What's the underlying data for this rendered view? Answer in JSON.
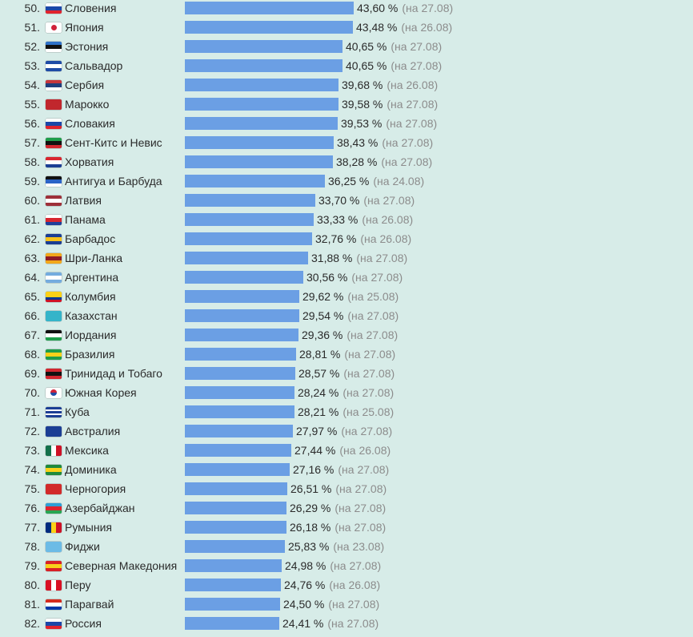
{
  "chart_data": {
    "type": "bar",
    "orientation": "horizontal",
    "bar_color": "#6b9fe4",
    "rows": [
      {
        "rank": "50.",
        "country": "Словения",
        "value_label": "43,60 %",
        "value": 43.6,
        "date_label": "(на 27.08)",
        "flag": [
          "#ffffff",
          "#1b47a8",
          "#e0232d"
        ]
      },
      {
        "rank": "51.",
        "country": "Япония",
        "value_label": "43,48 %",
        "value": 43.48,
        "date_label": "(на 26.08)",
        "flag_icon": "japan-flag-icon"
      },
      {
        "rank": "52.",
        "country": "Эстония",
        "value_label": "40,65 %",
        "value": 40.65,
        "date_label": "(на 27.08)",
        "flag": [
          "#2f72c9",
          "#111111",
          "#ffffff"
        ]
      },
      {
        "rank": "53.",
        "country": "Сальвадор",
        "value_label": "40,65 %",
        "value": 40.65,
        "date_label": "(на 27.08)",
        "flag": [
          "#1e4ba6",
          "#ffffff",
          "#1e4ba6"
        ]
      },
      {
        "rank": "54.",
        "country": "Сербия",
        "value_label": "39,68 %",
        "value": 39.68,
        "date_label": "(на 26.08)",
        "flag": [
          "#c7363c",
          "#1f3f7d",
          "#ffffff"
        ]
      },
      {
        "rank": "55.",
        "country": "Марокко",
        "value_label": "39,58 %",
        "value": 39.58,
        "date_label": "(на 27.08)",
        "flag": [
          "#c1272d"
        ]
      },
      {
        "rank": "56.",
        "country": "Словакия",
        "value_label": "39,53 %",
        "value": 39.53,
        "date_label": "(на 27.08)",
        "flag": [
          "#ffffff",
          "#1b47a8",
          "#e0232d"
        ]
      },
      {
        "rank": "57.",
        "country": "Сент-Китс и Невис",
        "value_label": "38,43 %",
        "value": 38.43,
        "date_label": "(на 27.08)",
        "flag": [
          "#1e9d4a",
          "#111111",
          "#d2262f"
        ]
      },
      {
        "rank": "58.",
        "country": "Хорватия",
        "value_label": "38,28 %",
        "value": 38.28,
        "date_label": "(на 27.08)",
        "flag": [
          "#d9262f",
          "#ffffff",
          "#1b3e94"
        ]
      },
      {
        "rank": "59.",
        "country": "Антигуа и Барбуда",
        "value_label": "36,25 %",
        "value": 36.25,
        "date_label": "(на 24.08)",
        "flag": [
          "#111111",
          "#2a63c7",
          "#ffffff"
        ]
      },
      {
        "rank": "60.",
        "country": "Латвия",
        "value_label": "33,70 %",
        "value": 33.7,
        "date_label": "(на 27.08)",
        "flag": [
          "#9e3039",
          "#ffffff",
          "#9e3039"
        ]
      },
      {
        "rank": "61.",
        "country": "Панама",
        "value_label": "33,33 %",
        "value": 33.33,
        "date_label": "(на 26.08)",
        "flag": [
          "#ffffff",
          "#d7262f",
          "#1f3f9a"
        ]
      },
      {
        "rank": "62.",
        "country": "Барбадос",
        "value_label": "32,76 %",
        "value": 32.76,
        "date_label": "(на 26.08)",
        "flag": [
          "#1b3e94",
          "#f7c11a",
          "#1b3e94"
        ]
      },
      {
        "rank": "63.",
        "country": "Шри-Ланка",
        "value_label": "31,88 %",
        "value": 31.88,
        "date_label": "(на 27.08)",
        "flag": [
          "#f2a81b",
          "#8e1b26",
          "#f2a81b"
        ]
      },
      {
        "rank": "64.",
        "country": "Аргентина",
        "value_label": "30,56 %",
        "value": 30.56,
        "date_label": "(на 27.08)",
        "flag": [
          "#74acdf",
          "#ffffff",
          "#74acdf"
        ]
      },
      {
        "rank": "65.",
        "country": "Колумбия",
        "value_label": "29,62 %",
        "value": 29.62,
        "date_label": "(на 25.08)",
        "flag": [
          "#fcd116",
          "#fcd116",
          "#003893",
          "#ce1126"
        ]
      },
      {
        "rank": "66.",
        "country": "Казахстан",
        "value_label": "29,54 %",
        "value": 29.54,
        "date_label": "(на 27.08)",
        "flag": [
          "#34b4c9"
        ]
      },
      {
        "rank": "67.",
        "country": "Иордания",
        "value_label": "29,36 %",
        "value": 29.36,
        "date_label": "(на 27.08)",
        "flag": [
          "#111111",
          "#ffffff",
          "#1e9d4a"
        ]
      },
      {
        "rank": "68.",
        "country": "Бразилия",
        "value_label": "28,81 %",
        "value": 28.81,
        "date_label": "(на 27.08)",
        "flag": [
          "#1e9d4a",
          "#f7d11a",
          "#1e9d4a"
        ]
      },
      {
        "rank": "69.",
        "country": "Тринидад и Тобаго",
        "value_label": "28,57 %",
        "value": 28.57,
        "date_label": "(на 27.08)",
        "flag": [
          "#d2262f",
          "#111111",
          "#d2262f"
        ]
      },
      {
        "rank": "70.",
        "country": "Южная Корея",
        "value_label": "28,24 %",
        "value": 28.24,
        "date_label": "(на 27.08)",
        "flag_icon": "south-korea-flag-icon"
      },
      {
        "rank": "71.",
        "country": "Куба",
        "value_label": "28,21 %",
        "value": 28.21,
        "date_label": "(на 25.08)",
        "flag": [
          "#1b3e94",
          "#ffffff",
          "#1b3e94",
          "#ffffff",
          "#1b3e94"
        ]
      },
      {
        "rank": "72.",
        "country": "Австралия",
        "value_label": "27,97 %",
        "value": 27.97,
        "date_label": "(на 27.08)",
        "flag": [
          "#1b3e94"
        ]
      },
      {
        "rank": "73.",
        "country": "Мексика",
        "value_label": "27,44 %",
        "value": 27.44,
        "date_label": "(на 26.08)",
        "flag_icon": "mexico-flag-icon"
      },
      {
        "rank": "74.",
        "country": "Доминика",
        "value_label": "27,16 %",
        "value": 27.16,
        "date_label": "(на 27.08)",
        "flag": [
          "#1e8a3e",
          "#f7d11a",
          "#1e8a3e"
        ]
      },
      {
        "rank": "75.",
        "country": "Черногория",
        "value_label": "26,51 %",
        "value": 26.51,
        "date_label": "(на 27.08)",
        "flag": [
          "#d22a2a"
        ]
      },
      {
        "rank": "76.",
        "country": "Азербайджан",
        "value_label": "26,29 %",
        "value": 26.29,
        "date_label": "(на 27.08)",
        "flag": [
          "#2e9fd6",
          "#e0232d",
          "#27a552"
        ]
      },
      {
        "rank": "77.",
        "country": "Румыния",
        "value_label": "26,18 %",
        "value": 26.18,
        "date_label": "(на 27.08)",
        "flag_icon": "romania-flag-icon"
      },
      {
        "rank": "78.",
        "country": "Фиджи",
        "value_label": "25,83 %",
        "value": 25.83,
        "date_label": "(на 23.08)",
        "flag": [
          "#6cbbe6"
        ]
      },
      {
        "rank": "79.",
        "country": "Северная Македония",
        "value_label": "24,98 %",
        "value": 24.98,
        "date_label": "(на 27.08)",
        "flag": [
          "#d82126",
          "#f8d11b",
          "#d82126"
        ]
      },
      {
        "rank": "80.",
        "country": "Перу",
        "value_label": "24,76 %",
        "value": 24.76,
        "date_label": "(на 26.08)",
        "flag_icon": "peru-flag-icon"
      },
      {
        "rank": "81.",
        "country": "Парагвай",
        "value_label": "24,50 %",
        "value": 24.5,
        "date_label": "(на 27.08)",
        "flag": [
          "#d52b1e",
          "#ffffff",
          "#0038a8"
        ]
      },
      {
        "rank": "82.",
        "country": "Россия",
        "value_label": "24,41 %",
        "value": 24.41,
        "date_label": "(на 27.08)",
        "flag": [
          "#ffffff",
          "#1b47a8",
          "#e0232d"
        ]
      }
    ]
  }
}
